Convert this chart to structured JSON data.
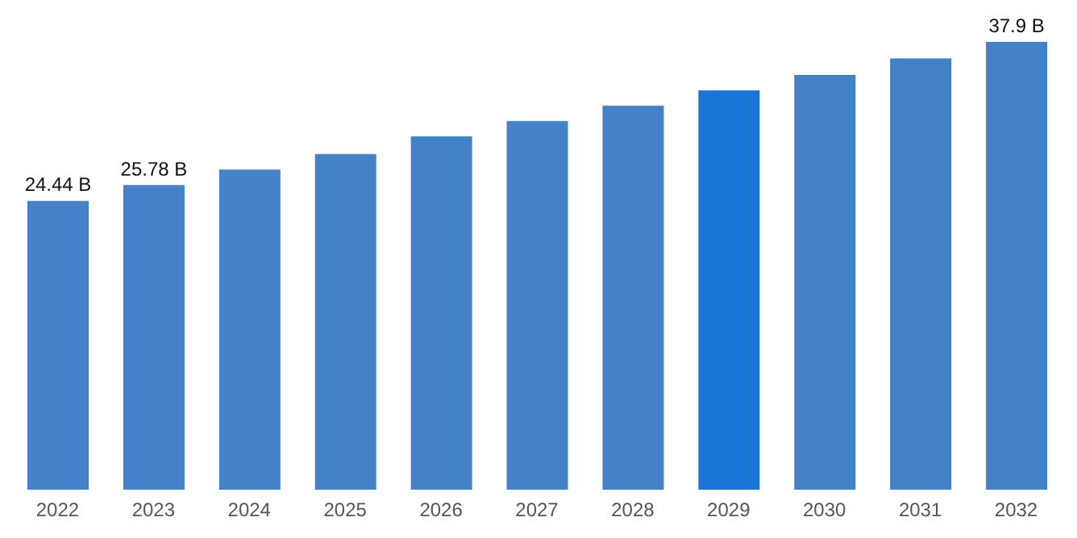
{
  "chart_data": {
    "type": "bar",
    "categories": [
      "2022",
      "2023",
      "2024",
      "2025",
      "2026",
      "2027",
      "2028",
      "2029",
      "2030",
      "2031",
      "2032"
    ],
    "values": [
      24.44,
      25.78,
      27.1,
      28.4,
      29.9,
      31.2,
      32.5,
      33.8,
      35.1,
      36.5,
      37.9
    ],
    "colors": [
      "#4382c8",
      "#4382c8",
      "#4382c8",
      "#4382c8",
      "#4382c8",
      "#4382c8",
      "#4382c8",
      "#1a75d6",
      "#4382c8",
      "#4382c8",
      "#4382c8"
    ],
    "value_labels": [
      "24.44 B",
      "25.78 B",
      null,
      null,
      null,
      null,
      null,
      null,
      null,
      null,
      "37.9 B"
    ],
    "grid": false
  }
}
